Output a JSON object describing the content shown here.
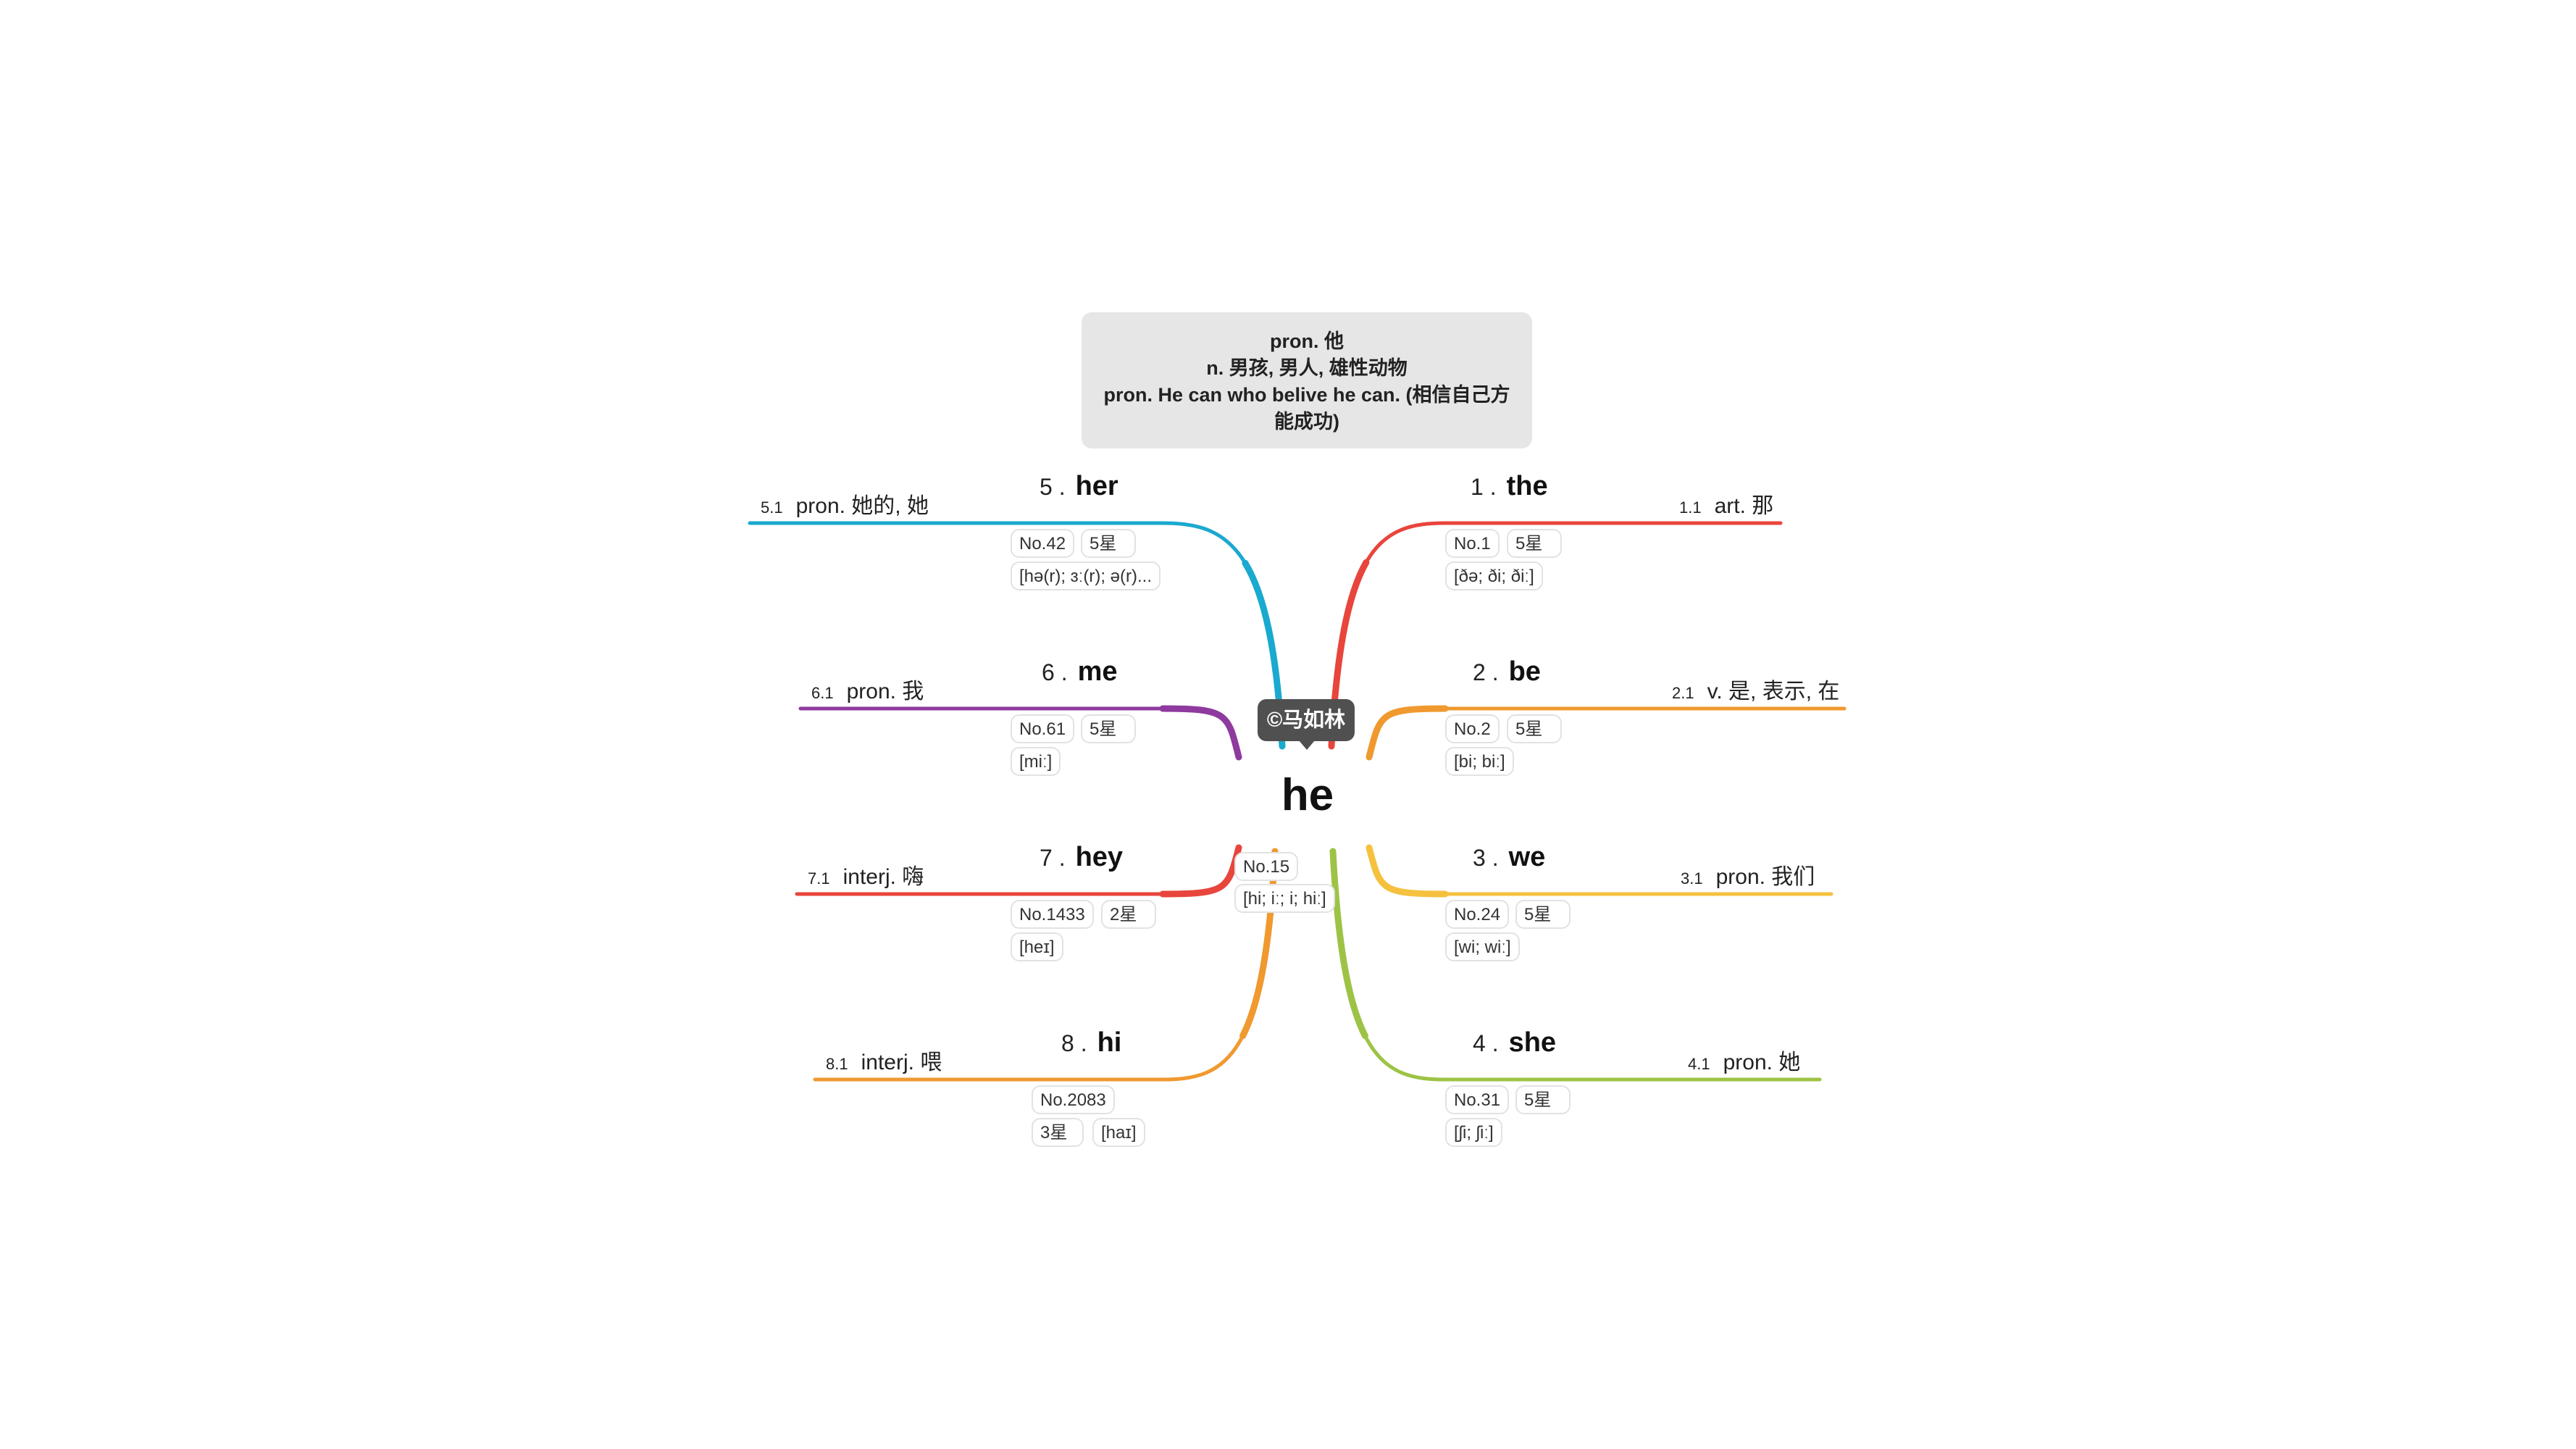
{
  "root": {
    "word": "he",
    "author": "©马如林",
    "definitions": [
      "pron. 他",
      "n. 男孩, 男人, 雄性动物",
      "pron. He can who belive he can. (相信自己方能成功)"
    ],
    "rank": "No.15",
    "phonetic": "[hi; iː; i; hiː]"
  },
  "branches": [
    {
      "num": "1 .",
      "word": "the",
      "sense_num": "1.1",
      "sense": "art. 那",
      "rank": "No.1",
      "stars": "5星",
      "phonetic": "[ðə; ði; ðiː]",
      "color": "#e8453c"
    },
    {
      "num": "2 .",
      "word": "be",
      "sense_num": "2.1",
      "sense": "v. 是, 表示, 在",
      "rank": "No.2",
      "stars": "5星",
      "phonetic": "[bi; biː]",
      "color": "#f0992f"
    },
    {
      "num": "3 .",
      "word": "we",
      "sense_num": "3.1",
      "sense": "pron. 我们",
      "rank": "No.24",
      "stars": "5星",
      "phonetic": "[wi; wiː]",
      "color": "#f5c13f"
    },
    {
      "num": "4 .",
      "word": "she",
      "sense_num": "4.1",
      "sense": "pron. 她",
      "rank": "No.31",
      "stars": "5星",
      "phonetic": "[ʃi; ʃiː]",
      "color": "#9dc346"
    },
    {
      "num": "5 .",
      "word": "her",
      "sense_num": "5.1",
      "sense": "pron. 她的, 她",
      "rank": "No.42",
      "stars": "5星",
      "phonetic": "[hə(r); ɜː(r); ə(r)...",
      "color": "#1aa9cf"
    },
    {
      "num": "6 .",
      "word": "me",
      "sense_num": "6.1",
      "sense": "pron. 我",
      "rank": "No.61",
      "stars": "5星",
      "phonetic": "[miː]",
      "color": "#8e3a9e"
    },
    {
      "num": "7 .",
      "word": "hey",
      "sense_num": "7.1",
      "sense": "interj. 嗨",
      "rank": "No.1433",
      "stars": "2星",
      "phonetic": "[heɪ]",
      "color": "#e8453c"
    },
    {
      "num": "8 .",
      "word": "hi",
      "sense_num": "8.1",
      "sense": "interj. 喂",
      "rank": "No.2083",
      "stars": "3星",
      "phonetic": "[haɪ]",
      "color": "#f0992f"
    }
  ]
}
